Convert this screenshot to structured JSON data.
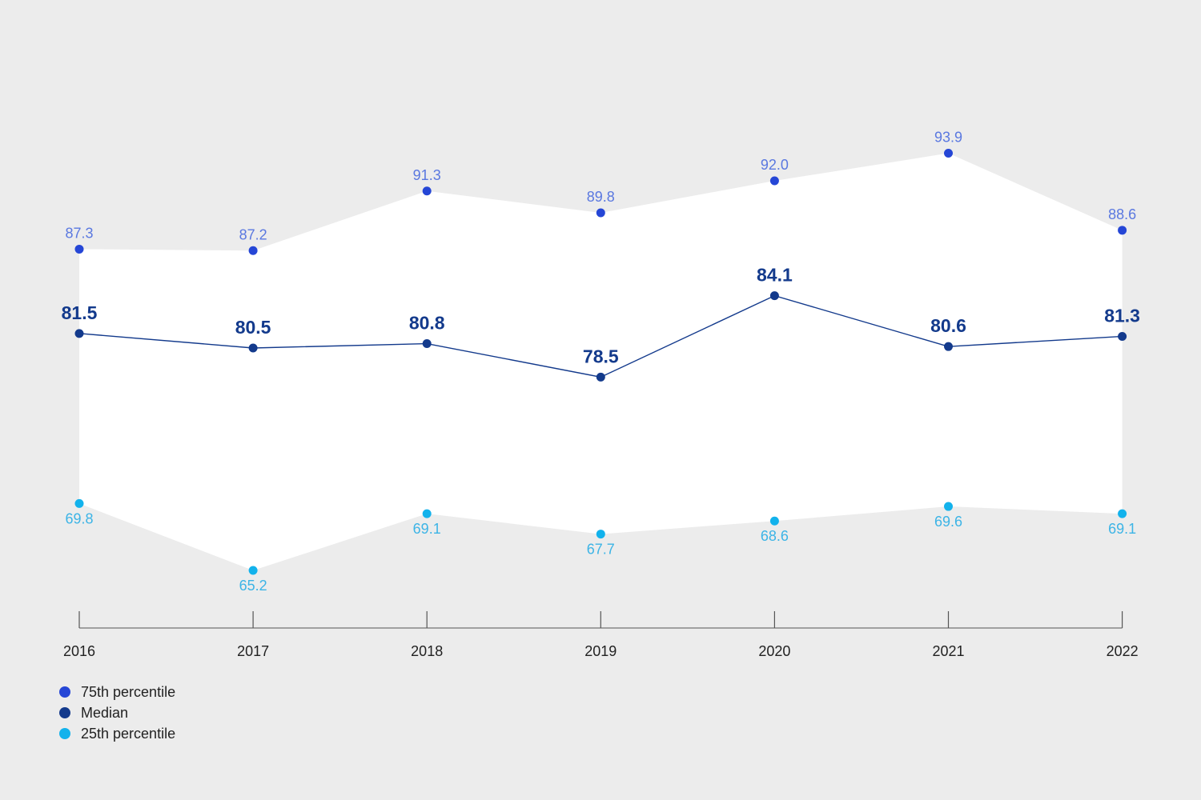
{
  "chart_data": {
    "type": "line",
    "x": [
      "2016",
      "2017",
      "2018",
      "2019",
      "2020",
      "2021",
      "2022"
    ],
    "series": [
      {
        "key": "p75",
        "name": "75th percentile",
        "values": [
          87.3,
          87.2,
          91.3,
          89.8,
          92.0,
          93.9,
          88.6
        ],
        "labels": [
          "87.3",
          "87.2",
          "91.3",
          "89.8",
          "92.0",
          "93.9",
          "88.6"
        ],
        "color": "#2546d6"
      },
      {
        "key": "median",
        "name": "Median",
        "values": [
          81.5,
          80.5,
          80.8,
          78.5,
          84.1,
          80.6,
          81.3
        ],
        "labels": [
          "81.5",
          "80.5",
          "80.8",
          "78.5",
          "84.1",
          "80.6",
          "81.3"
        ],
        "color": "#133a8c"
      },
      {
        "key": "p25",
        "name": "25th percentile",
        "values": [
          69.8,
          65.2,
          69.1,
          67.7,
          68.6,
          69.6,
          69.1
        ],
        "labels": [
          "69.8",
          "65.2",
          "69.1",
          "67.7",
          "68.6",
          "69.6",
          "69.1"
        ],
        "color": "#12b2ec"
      }
    ],
    "band": {
      "between": [
        "p25",
        "p75"
      ],
      "color": "#ffffff"
    },
    "title": "",
    "xlabel": "",
    "ylabel": "",
    "y_axis_visible": false,
    "grid": false,
    "legend_position": "bottom-left",
    "background": "#ececec"
  }
}
